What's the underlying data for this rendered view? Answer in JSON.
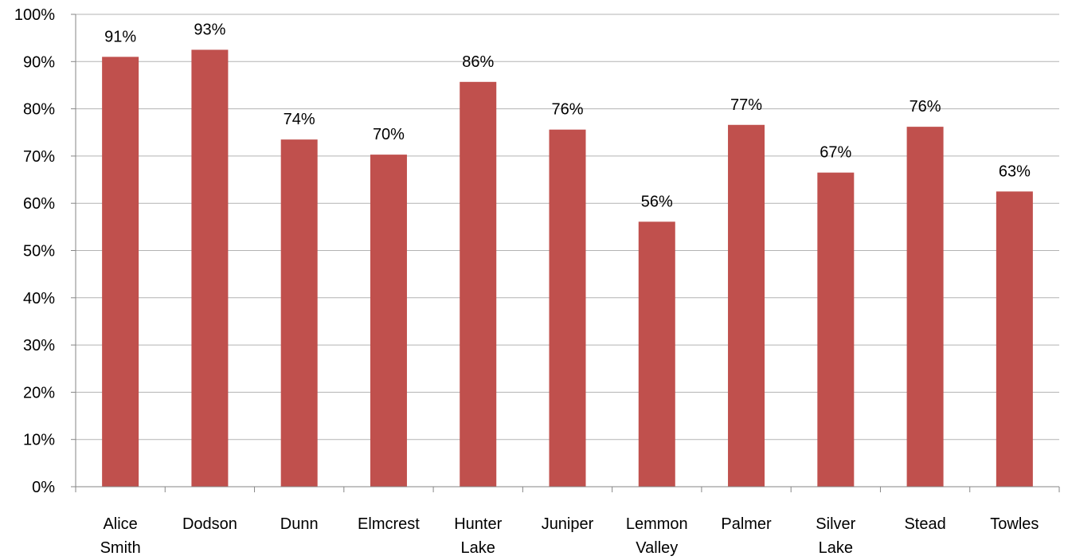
{
  "chart_data": {
    "type": "bar",
    "categories": [
      [
        "Alice",
        "Smith"
      ],
      [
        "Dodson"
      ],
      [
        "Dunn"
      ],
      [
        "Elmcrest"
      ],
      [
        "Hunter",
        "Lake"
      ],
      [
        "Juniper"
      ],
      [
        "Lemmon",
        "Valley"
      ],
      [
        "Palmer"
      ],
      [
        "Silver",
        "Lake"
      ],
      [
        "Stead"
      ],
      [
        "Towles"
      ]
    ],
    "values": [
      91,
      92.5,
      73.5,
      70.3,
      85.7,
      75.6,
      56.1,
      76.6,
      66.5,
      76.2,
      62.5
    ],
    "data_labels": [
      "91%",
      "93%",
      "74%",
      "70%",
      "86%",
      "76%",
      "56%",
      "77%",
      "67%",
      "76%",
      "63%"
    ],
    "y_ticks": [
      "0%",
      "10%",
      "20%",
      "30%",
      "40%",
      "50%",
      "60%",
      "70%",
      "80%",
      "90%",
      "100%"
    ],
    "ylim": [
      0,
      100
    ],
    "grid": true,
    "legend": "none",
    "bar_color": "#c0504d",
    "grid_color": "#b3b3b3",
    "axis_color": "#868686"
  }
}
